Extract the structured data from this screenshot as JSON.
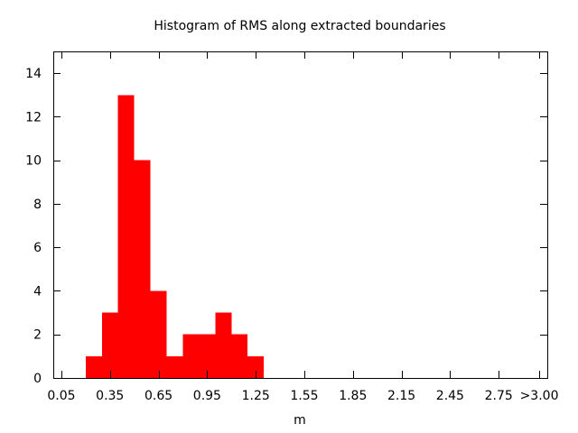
{
  "colors": {
    "bar": "#ff0000",
    "axis": "#000000",
    "background": "#ffffff"
  },
  "chart_data": {
    "type": "bar",
    "title": "Histogram of RMS along extracted boundaries",
    "xlabel": "m",
    "ylabel": "",
    "xlim": [
      0.0,
      3.05
    ],
    "ylim": [
      0,
      15
    ],
    "bin_width": 0.1,
    "grid": false,
    "legend": "none",
    "x_ticks": [
      {
        "value": 0.05,
        "label": "0.05"
      },
      {
        "value": 0.35,
        "label": "0.35"
      },
      {
        "value": 0.65,
        "label": "0.65"
      },
      {
        "value": 0.95,
        "label": "0.95"
      },
      {
        "value": 1.25,
        "label": "1.25"
      },
      {
        "value": 1.55,
        "label": "1.55"
      },
      {
        "value": 1.85,
        "label": "1.85"
      },
      {
        "value": 2.15,
        "label": "2.15"
      },
      {
        "value": 2.45,
        "label": "2.45"
      },
      {
        "value": 2.75,
        "label": "2.75"
      },
      {
        "value": 3.0,
        "label": ">3.00"
      }
    ],
    "y_ticks": [
      0,
      2,
      4,
      6,
      8,
      10,
      12,
      14
    ],
    "bins": [
      {
        "x": 0.25,
        "count": 1
      },
      {
        "x": 0.35,
        "count": 3
      },
      {
        "x": 0.45,
        "count": 13
      },
      {
        "x": 0.55,
        "count": 10
      },
      {
        "x": 0.65,
        "count": 4
      },
      {
        "x": 0.75,
        "count": 1
      },
      {
        "x": 0.85,
        "count": 2
      },
      {
        "x": 0.95,
        "count": 2
      },
      {
        "x": 1.05,
        "count": 3
      },
      {
        "x": 1.15,
        "count": 2
      },
      {
        "x": 1.25,
        "count": 1
      }
    ]
  }
}
